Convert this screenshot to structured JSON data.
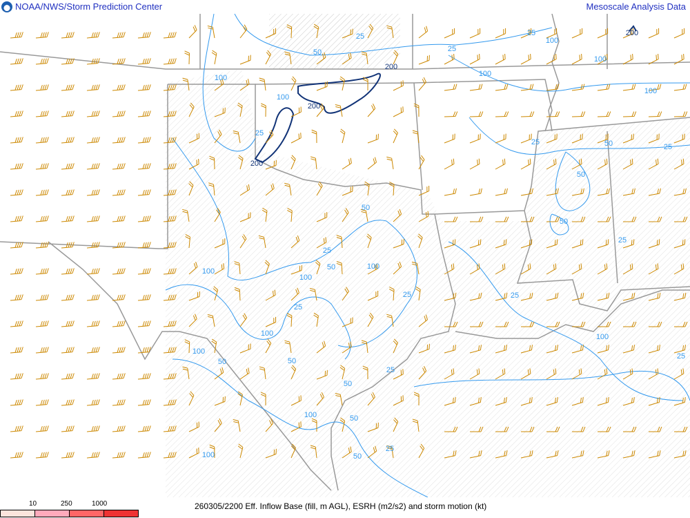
{
  "header": {
    "left_title": "NOAA/NWS/Storm Prediction Center",
    "right_title": "Mesoscale Analysis Data",
    "logo": "noaa-logo"
  },
  "footer": {
    "caption": "260305/2200 Eff. Inflow Base (fill, m AGL), ESRH (m2/s2) and storm motion (kt)",
    "legend_ticks": [
      "10",
      "250",
      "1000"
    ],
    "legend_colors": [
      "#fce4dc",
      "#ffaabb",
      "#ff6666",
      "#ee3333"
    ]
  },
  "colors": {
    "contour": "#3399ee",
    "contour_200": "#113377",
    "barbs": "#cc8800",
    "boundaries": "#999999",
    "title": "#2030c0"
  },
  "contour_labels": [
    "25",
    "50",
    "25",
    "25",
    "100",
    "200",
    "100",
    "100",
    "100",
    "200",
    "100",
    "200",
    "100",
    "25",
    "200",
    "25",
    "50",
    "25",
    "50",
    "50",
    "50",
    "25",
    "25",
    "50",
    "100",
    "100",
    "100",
    "25",
    "25",
    "25",
    "100",
    "100",
    "100",
    "50",
    "50",
    "25",
    "25",
    "50",
    "100",
    "50",
    "25",
    "50",
    "100"
  ]
}
